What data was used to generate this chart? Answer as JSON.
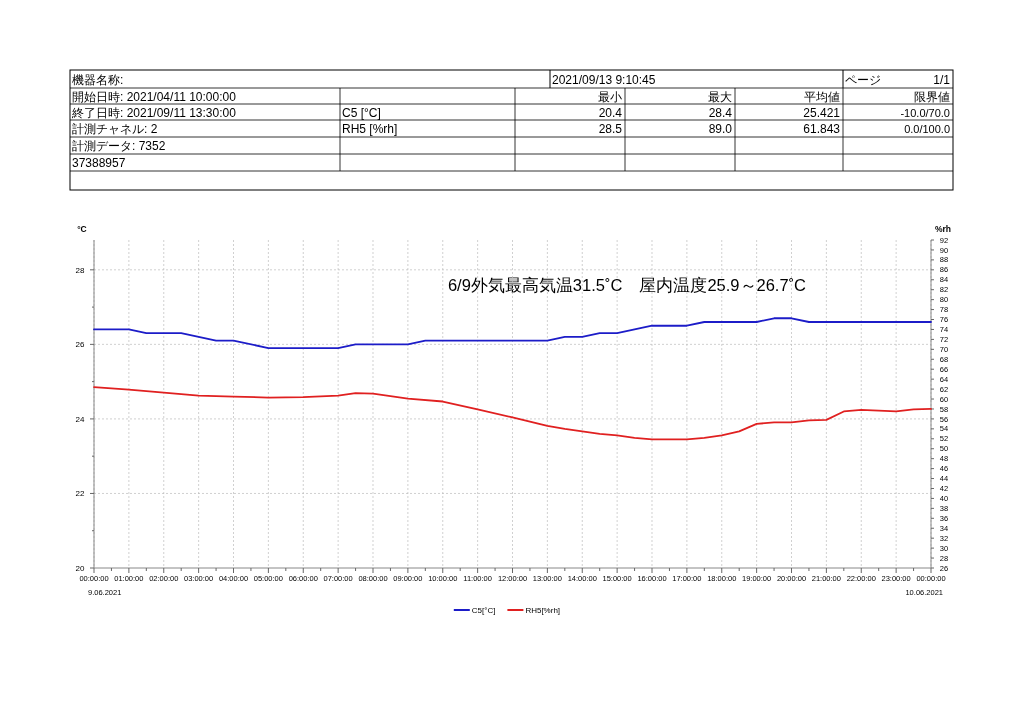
{
  "chart_data": {
    "type": "line",
    "ylabel": "°C",
    "y2label": "%rh",
    "xlim": [
      "2021-06-09T00:00",
      "2021-06-10T00:00"
    ],
    "ylim": [
      20,
      28.8
    ],
    "y2lim": [
      26,
      92
    ],
    "xticks": [
      {
        "value": "2021-06-09T00:00",
        "label": "00:00:00"
      },
      {
        "value": "2021-06-09T00:30",
        "label": null
      },
      {
        "value": "2021-06-09T01:00",
        "label": "01:00:00"
      },
      {
        "value": "2021-06-09T01:30",
        "label": null
      },
      {
        "value": "2021-06-09T02:00",
        "label": "02:00:00"
      },
      {
        "value": "2021-06-09T02:30",
        "label": null
      },
      {
        "value": "2021-06-09T03:00",
        "label": "03:00:00"
      },
      {
        "value": "2021-06-09T03:30",
        "label": null
      },
      {
        "value": "2021-06-09T04:00",
        "label": "04:00:00"
      },
      {
        "value": "2021-06-09T04:30",
        "label": null
      },
      {
        "value": "2021-06-09T05:00",
        "label": "05:00:00"
      },
      {
        "value": "2021-06-09T05:30",
        "label": null
      },
      {
        "value": "2021-06-09T06:00",
        "label": "06:00:00"
      },
      {
        "value": "2021-06-09T06:30",
        "label": null
      },
      {
        "value": "2021-06-09T07:00",
        "label": "07:00:00"
      },
      {
        "value": "2021-06-09T07:30",
        "label": null
      },
      {
        "value": "2021-06-09T08:00",
        "label": "08:00:00"
      },
      {
        "value": "2021-06-09T08:30",
        "label": null
      },
      {
        "value": "2021-06-09T09:00",
        "label": "09:00:00"
      },
      {
        "value": "2021-06-09T09:30",
        "label": null
      },
      {
        "value": "2021-06-09T10:00",
        "label": "10:00:00"
      },
      {
        "value": "2021-06-09T10:30",
        "label": null
      },
      {
        "value": "2021-06-09T11:00",
        "label": "11:00:00"
      },
      {
        "value": "2021-06-09T11:30",
        "label": null
      },
      {
        "value": "2021-06-09T12:00",
        "label": "12:00:00"
      },
      {
        "value": "2021-06-09T12:30",
        "label": null
      },
      {
        "value": "2021-06-09T13:00",
        "label": "13:00:00"
      },
      {
        "value": "2021-06-09T13:30",
        "label": null
      },
      {
        "value": "2021-06-09T14:00",
        "label": "14:00:00"
      },
      {
        "value": "2021-06-09T14:30",
        "label": null
      },
      {
        "value": "2021-06-09T15:00",
        "label": "15:00:00"
      },
      {
        "value": "2021-06-09T15:30",
        "label": null
      },
      {
        "value": "2021-06-09T16:00",
        "label": "16:00:00"
      },
      {
        "value": "2021-06-09T16:30",
        "label": null
      },
      {
        "value": "2021-06-09T17:00",
        "label": "17:00:00"
      },
      {
        "value": "2021-06-09T17:30",
        "label": null
      },
      {
        "value": "2021-06-09T18:00",
        "label": "18:00:00"
      },
      {
        "value": "2021-06-09T18:30",
        "label": null
      },
      {
        "value": "2021-06-09T19:00",
        "label": "19:00:00"
      },
      {
        "value": "2021-06-09T19:30",
        "label": null
      },
      {
        "value": "2021-06-09T20:00",
        "label": "20:00:00"
      },
      {
        "value": "2021-06-09T20:30",
        "label": null
      },
      {
        "value": "2021-06-09T21:00",
        "label": "21:00:00"
      },
      {
        "value": "2021-06-09T21:30",
        "label": null
      },
      {
        "value": "2021-06-09T22:00",
        "label": "22:00:00"
      },
      {
        "value": "2021-06-09T22:30",
        "label": null
      },
      {
        "value": "2021-06-09T23:00",
        "label": "23:00:00"
      },
      {
        "value": "2021-06-09T23:30",
        "label": null
      },
      {
        "value": "2021-06-10T00:00",
        "label": "00:00:00"
      }
    ],
    "yticks": [
      20,
      {
        "value": 21,
        "label": null
      },
      22,
      {
        "value": 23,
        "label": null
      },
      24,
      {
        "value": 25,
        "label": null
      },
      26,
      {
        "value": 27,
        "label": null
      },
      28
    ],
    "y2ticks": [
      26,
      28,
      30,
      32,
      34,
      36,
      38,
      40,
      42,
      44,
      46,
      48,
      50,
      52,
      54,
      56,
      58,
      60,
      62,
      64,
      66,
      68,
      70,
      72,
      74,
      76,
      78,
      80,
      82,
      84,
      86,
      88,
      90,
      92
    ],
    "grid": true,
    "legend": "bottom",
    "series": [
      {
        "name": "C5[°C]",
        "color": "#1c1cc8",
        "x": [
          "2021-06-09T00:00",
          "2021-06-09T01:00",
          "2021-06-09T01:30",
          "2021-06-09T02:30",
          "2021-06-09T03:30",
          "2021-06-09T04:00",
          "2021-06-09T05:00",
          "2021-06-09T07:00",
          "2021-06-09T07:30",
          "2021-06-09T09:00",
          "2021-06-09T09:30",
          "2021-06-09T13:00",
          "2021-06-09T13:30",
          "2021-06-09T14:00",
          "2021-06-09T14:30",
          "2021-06-09T15:00",
          "2021-06-09T16:00",
          "2021-06-09T17:00",
          "2021-06-09T17:30",
          "2021-06-09T19:00",
          "2021-06-09T19:30",
          "2021-06-09T20:00",
          "2021-06-09T20:30",
          "2021-06-10T00:00"
        ],
        "values": [
          26.4,
          26.4,
          26.3,
          26.3,
          26.1,
          26.1,
          25.9,
          25.9,
          26.0,
          26.0,
          26.1,
          26.1,
          26.2,
          26.2,
          26.3,
          26.3,
          26.5,
          26.5,
          26.6,
          26.6,
          26.7,
          26.7,
          26.6,
          26.6
        ]
      },
      {
        "name": "RH5[%rh]",
        "color": "#e02020",
        "axis": "y2",
        "x": [
          "2021-06-09T00:00",
          "2021-06-09T01:00",
          "2021-06-09T02:00",
          "2021-06-09T03:00",
          "2021-06-09T04:00",
          "2021-06-09T05:00",
          "2021-06-09T06:00",
          "2021-06-09T07:00",
          "2021-06-09T07:30",
          "2021-06-09T08:00",
          "2021-06-09T09:00",
          "2021-06-09T10:00",
          "2021-06-09T11:00",
          "2021-06-09T12:00",
          "2021-06-09T13:00",
          "2021-06-09T13:30",
          "2021-06-09T14:00",
          "2021-06-09T14:30",
          "2021-06-09T15:00",
          "2021-06-09T15:30",
          "2021-06-09T16:00",
          "2021-06-09T17:00",
          "2021-06-09T17:30",
          "2021-06-09T18:00",
          "2021-06-09T18:30",
          "2021-06-09T19:00",
          "2021-06-09T19:30",
          "2021-06-09T20:00",
          "2021-06-09T20:30",
          "2021-06-09T21:00",
          "2021-06-09T21:30",
          "2021-06-09T22:00",
          "2021-06-09T23:00",
          "2021-06-09T23:30",
          "2021-06-10T00:00"
        ],
        "values": [
          62.4,
          61.9,
          61.3,
          60.7,
          60.5,
          60.3,
          60.4,
          60.7,
          61.2,
          61.1,
          60.1,
          59.5,
          57.9,
          56.3,
          54.6,
          54.0,
          53.5,
          53.0,
          52.7,
          52.2,
          51.9,
          51.9,
          52.2,
          52.7,
          53.5,
          55.0,
          55.3,
          55.3,
          55.7,
          55.8,
          57.5,
          57.8,
          57.5,
          57.9,
          58.0
        ]
      }
    ],
    "annotations": [
      "機器名称:",
      "2021/09/13 9:10:45",
      "ページ",
      "1/1",
      "開始日時: 2021/04/11 10:00:00",
      "最小",
      "最大",
      "平均値",
      "限界値",
      "終了日時: 2021/09/11 13:30:00",
      "C5 [°C]",
      "20.4",
      "28.4",
      "25.421",
      "-10.0/70.0",
      "計測チャネル: 2",
      "RH5 [%rh]",
      "28.5",
      "89.0",
      "61.843",
      "0.0/100.0",
      "計測データ: 7352",
      "37388957",
      "6/9外気最高気温31.5˚C　屋内温度25.9～26.7˚C",
      "9.06.2021",
      "10.06.2021"
    ]
  }
}
